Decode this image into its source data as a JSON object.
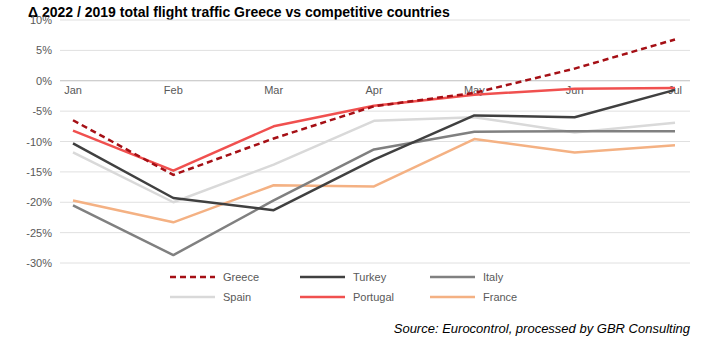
{
  "chart_data": {
    "type": "line",
    "title": "Δ 2022 / 2019 total flight traffic Greece vs competitive countries",
    "source": "Source: Eurocontrol, processed by GBR Consulting",
    "categories": [
      "Jan",
      "Feb",
      "Mar",
      "Apr",
      "May",
      "Jun",
      "Jul"
    ],
    "series": [
      {
        "name": "Greece",
        "color": "#a50f15",
        "line_style": "dashed",
        "values": [
          -6.5,
          -15.5,
          -9.5,
          -4.2,
          -2,
          2,
          6.8
        ]
      },
      {
        "name": "Turkey",
        "color": "#404040",
        "line_style": "solid",
        "values": [
          -10.3,
          -19.3,
          -21.3,
          -13,
          -5.7,
          -6,
          -1.5
        ]
      },
      {
        "name": "Italy",
        "color": "#808080",
        "line_style": "solid",
        "values": [
          -20.5,
          -28.7,
          -19.7,
          -11.3,
          -8.4,
          -8.3,
          -8.3
        ]
      },
      {
        "name": "Spain",
        "color": "#d9d9d9",
        "line_style": "solid",
        "values": [
          -11.8,
          -20,
          -13.8,
          -6.6,
          -6,
          -8.5,
          -6.9
        ]
      },
      {
        "name": "Portugal",
        "color": "#f0504f",
        "line_style": "solid",
        "values": [
          -8.2,
          -14.8,
          -7.5,
          -4.1,
          -2.3,
          -1.3,
          -1.2
        ]
      },
      {
        "name": "France",
        "color": "#f4b183",
        "line_style": "solid",
        "values": [
          -19.7,
          -23.3,
          -17.2,
          -17.4,
          -9.6,
          -11.8,
          -10.6
        ]
      }
    ],
    "ylim": [
      -30,
      10
    ],
    "yticks": [
      {
        "value": 10,
        "label": "10%"
      },
      {
        "value": 5,
        "label": "5%"
      },
      {
        "value": 0,
        "label": "0%"
      },
      {
        "value": -5,
        "label": "-5%"
      },
      {
        "value": -10,
        "label": "-10%"
      },
      {
        "value": -15,
        "label": "-15%"
      },
      {
        "value": -20,
        "label": "-20%"
      },
      {
        "value": -25,
        "label": "-25%"
      },
      {
        "value": -30,
        "label": "-30%"
      }
    ],
    "grid": true,
    "legend": "bottom"
  }
}
